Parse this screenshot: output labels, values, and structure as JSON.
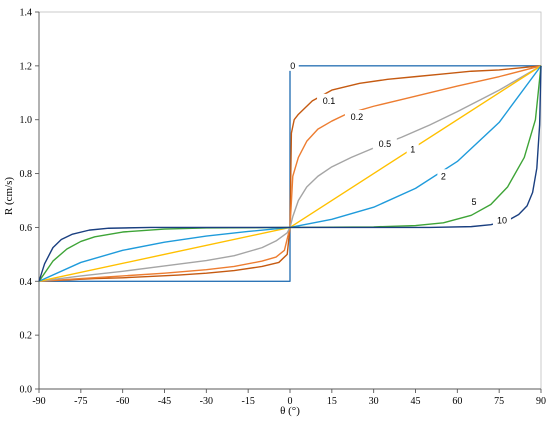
{
  "chart_data": {
    "type": "line",
    "title": "",
    "xlabel": "θ (°)",
    "ylabel": "R (cm/s)",
    "xlim": [
      -90,
      90
    ],
    "ylim": [
      0,
      1.4
    ],
    "xticks": [
      -90,
      -75,
      -60,
      -45,
      -30,
      -15,
      0,
      15,
      30,
      45,
      60,
      75,
      90
    ],
    "yticks": [
      0.0,
      0.2,
      0.4,
      0.6,
      0.8,
      1.0,
      1.2,
      1.4
    ],
    "x_tick_labels": [
      "-90",
      "-75",
      "-60",
      "-45",
      "-30",
      "-15",
      "0",
      "15",
      "30",
      "45",
      "60",
      "75",
      "90"
    ],
    "y_tick_labels": [
      "0.0",
      "0.2",
      "0.4",
      "0.6",
      "0.8",
      "1.0",
      "1.2",
      "1.4"
    ],
    "grid": false,
    "legend": "none",
    "series": [
      {
        "label": "0",
        "color": "#2E75B6",
        "points": [
          [
            -90,
            0.4
          ],
          [
            0,
            0.4
          ],
          [
            0,
            1.2
          ],
          [
            90,
            1.2
          ]
        ],
        "label_at": [
          1,
          1.2
        ]
      },
      {
        "label": "0.1",
        "color": "#C55A11",
        "points": [
          [
            -90,
            0.4
          ],
          [
            -80,
            0.405
          ],
          [
            -70,
            0.41
          ],
          [
            -60,
            0.413
          ],
          [
            -50,
            0.418
          ],
          [
            -40,
            0.423
          ],
          [
            -30,
            0.43
          ],
          [
            -20,
            0.44
          ],
          [
            -10,
            0.455
          ],
          [
            -4,
            0.47
          ],
          [
            -1,
            0.5
          ],
          [
            0,
            0.6
          ],
          [
            0.5,
            0.95
          ],
          [
            1.5,
            1.0
          ],
          [
            3,
            1.02
          ],
          [
            8,
            1.07
          ],
          [
            15,
            1.11
          ],
          [
            25,
            1.135
          ],
          [
            35,
            1.15
          ],
          [
            45,
            1.16
          ],
          [
            55,
            1.17
          ],
          [
            65,
            1.18
          ],
          [
            75,
            1.185
          ],
          [
            90,
            1.2
          ]
        ],
        "label_at": [
          14,
          1.07
        ]
      },
      {
        "label": "0.2",
        "color": "#ED7D31",
        "points": [
          [
            -90,
            0.4
          ],
          [
            -75,
            0.41
          ],
          [
            -60,
            0.42
          ],
          [
            -45,
            0.43
          ],
          [
            -30,
            0.443
          ],
          [
            -20,
            0.455
          ],
          [
            -10,
            0.475
          ],
          [
            -5,
            0.49
          ],
          [
            -2,
            0.515
          ],
          [
            0,
            0.6
          ],
          [
            1,
            0.79
          ],
          [
            3,
            0.86
          ],
          [
            6,
            0.92
          ],
          [
            10,
            0.965
          ],
          [
            15,
            0.995
          ],
          [
            20,
            1.02
          ],
          [
            30,
            1.05
          ],
          [
            40,
            1.075
          ],
          [
            50,
            1.1
          ],
          [
            60,
            1.125
          ],
          [
            75,
            1.16
          ],
          [
            90,
            1.2
          ]
        ],
        "label_at": [
          24,
          1.01
        ]
      },
      {
        "label": "0.5",
        "color": "#A5A5A5",
        "points": [
          [
            -90,
            0.4
          ],
          [
            -75,
            0.42
          ],
          [
            -60,
            0.437
          ],
          [
            -45,
            0.457
          ],
          [
            -30,
            0.477
          ],
          [
            -20,
            0.495
          ],
          [
            -10,
            0.525
          ],
          [
            -5,
            0.55
          ],
          [
            -1,
            0.58
          ],
          [
            0,
            0.6
          ],
          [
            1,
            0.64
          ],
          [
            3,
            0.7
          ],
          [
            6,
            0.75
          ],
          [
            10,
            0.79
          ],
          [
            15,
            0.825
          ],
          [
            22,
            0.86
          ],
          [
            30,
            0.895
          ],
          [
            40,
            0.935
          ],
          [
            50,
            0.98
          ],
          [
            60,
            1.03
          ],
          [
            75,
            1.11
          ],
          [
            90,
            1.2
          ]
        ],
        "label_at": [
          34,
          0.91
        ]
      },
      {
        "label": "1",
        "color": "#FFC000",
        "points": [
          [
            -90,
            0.4
          ],
          [
            0,
            0.6
          ],
          [
            90,
            1.2
          ]
        ],
        "label_at": [
          44,
          0.89
        ]
      },
      {
        "label": "2",
        "color": "#1F9BDB",
        "points": [
          [
            -90,
            0.4
          ],
          [
            -75,
            0.47
          ],
          [
            -60,
            0.515
          ],
          [
            -45,
            0.545
          ],
          [
            -30,
            0.568
          ],
          [
            -15,
            0.585
          ],
          [
            0,
            0.6
          ],
          [
            15,
            0.63
          ],
          [
            30,
            0.675
          ],
          [
            45,
            0.745
          ],
          [
            60,
            0.845
          ],
          [
            75,
            0.99
          ],
          [
            90,
            1.2
          ]
        ],
        "label_at": [
          55,
          0.79
        ]
      },
      {
        "label": "5",
        "color": "#3EA437",
        "points": [
          [
            -90,
            0.4
          ],
          [
            -85,
            0.475
          ],
          [
            -80,
            0.52
          ],
          [
            -75,
            0.548
          ],
          [
            -70,
            0.565
          ],
          [
            -60,
            0.583
          ],
          [
            -45,
            0.594
          ],
          [
            -30,
            0.598
          ],
          [
            0,
            0.6
          ],
          [
            30,
            0.602
          ],
          [
            45,
            0.607
          ],
          [
            55,
            0.617
          ],
          [
            65,
            0.645
          ],
          [
            72,
            0.685
          ],
          [
            78,
            0.75
          ],
          [
            84,
            0.86
          ],
          [
            88,
            1.0
          ],
          [
            90,
            1.2
          ]
        ],
        "label_at": [
          66,
          0.695
        ]
      },
      {
        "label": "10",
        "color": "#1A3F80",
        "points": [
          [
            -90,
            0.4
          ],
          [
            -88,
            0.465
          ],
          [
            -85,
            0.525
          ],
          [
            -82,
            0.555
          ],
          [
            -78,
            0.575
          ],
          [
            -72,
            0.59
          ],
          [
            -65,
            0.597
          ],
          [
            -50,
            0.6
          ],
          [
            0,
            0.6
          ],
          [
            50,
            0.6
          ],
          [
            65,
            0.603
          ],
          [
            72,
            0.61
          ],
          [
            78,
            0.625
          ],
          [
            82,
            0.648
          ],
          [
            85,
            0.68
          ],
          [
            87,
            0.73
          ],
          [
            88.5,
            0.82
          ],
          [
            89.5,
            0.98
          ],
          [
            90,
            1.2
          ]
        ],
        "label_at": [
          76,
          0.625
        ]
      }
    ]
  }
}
